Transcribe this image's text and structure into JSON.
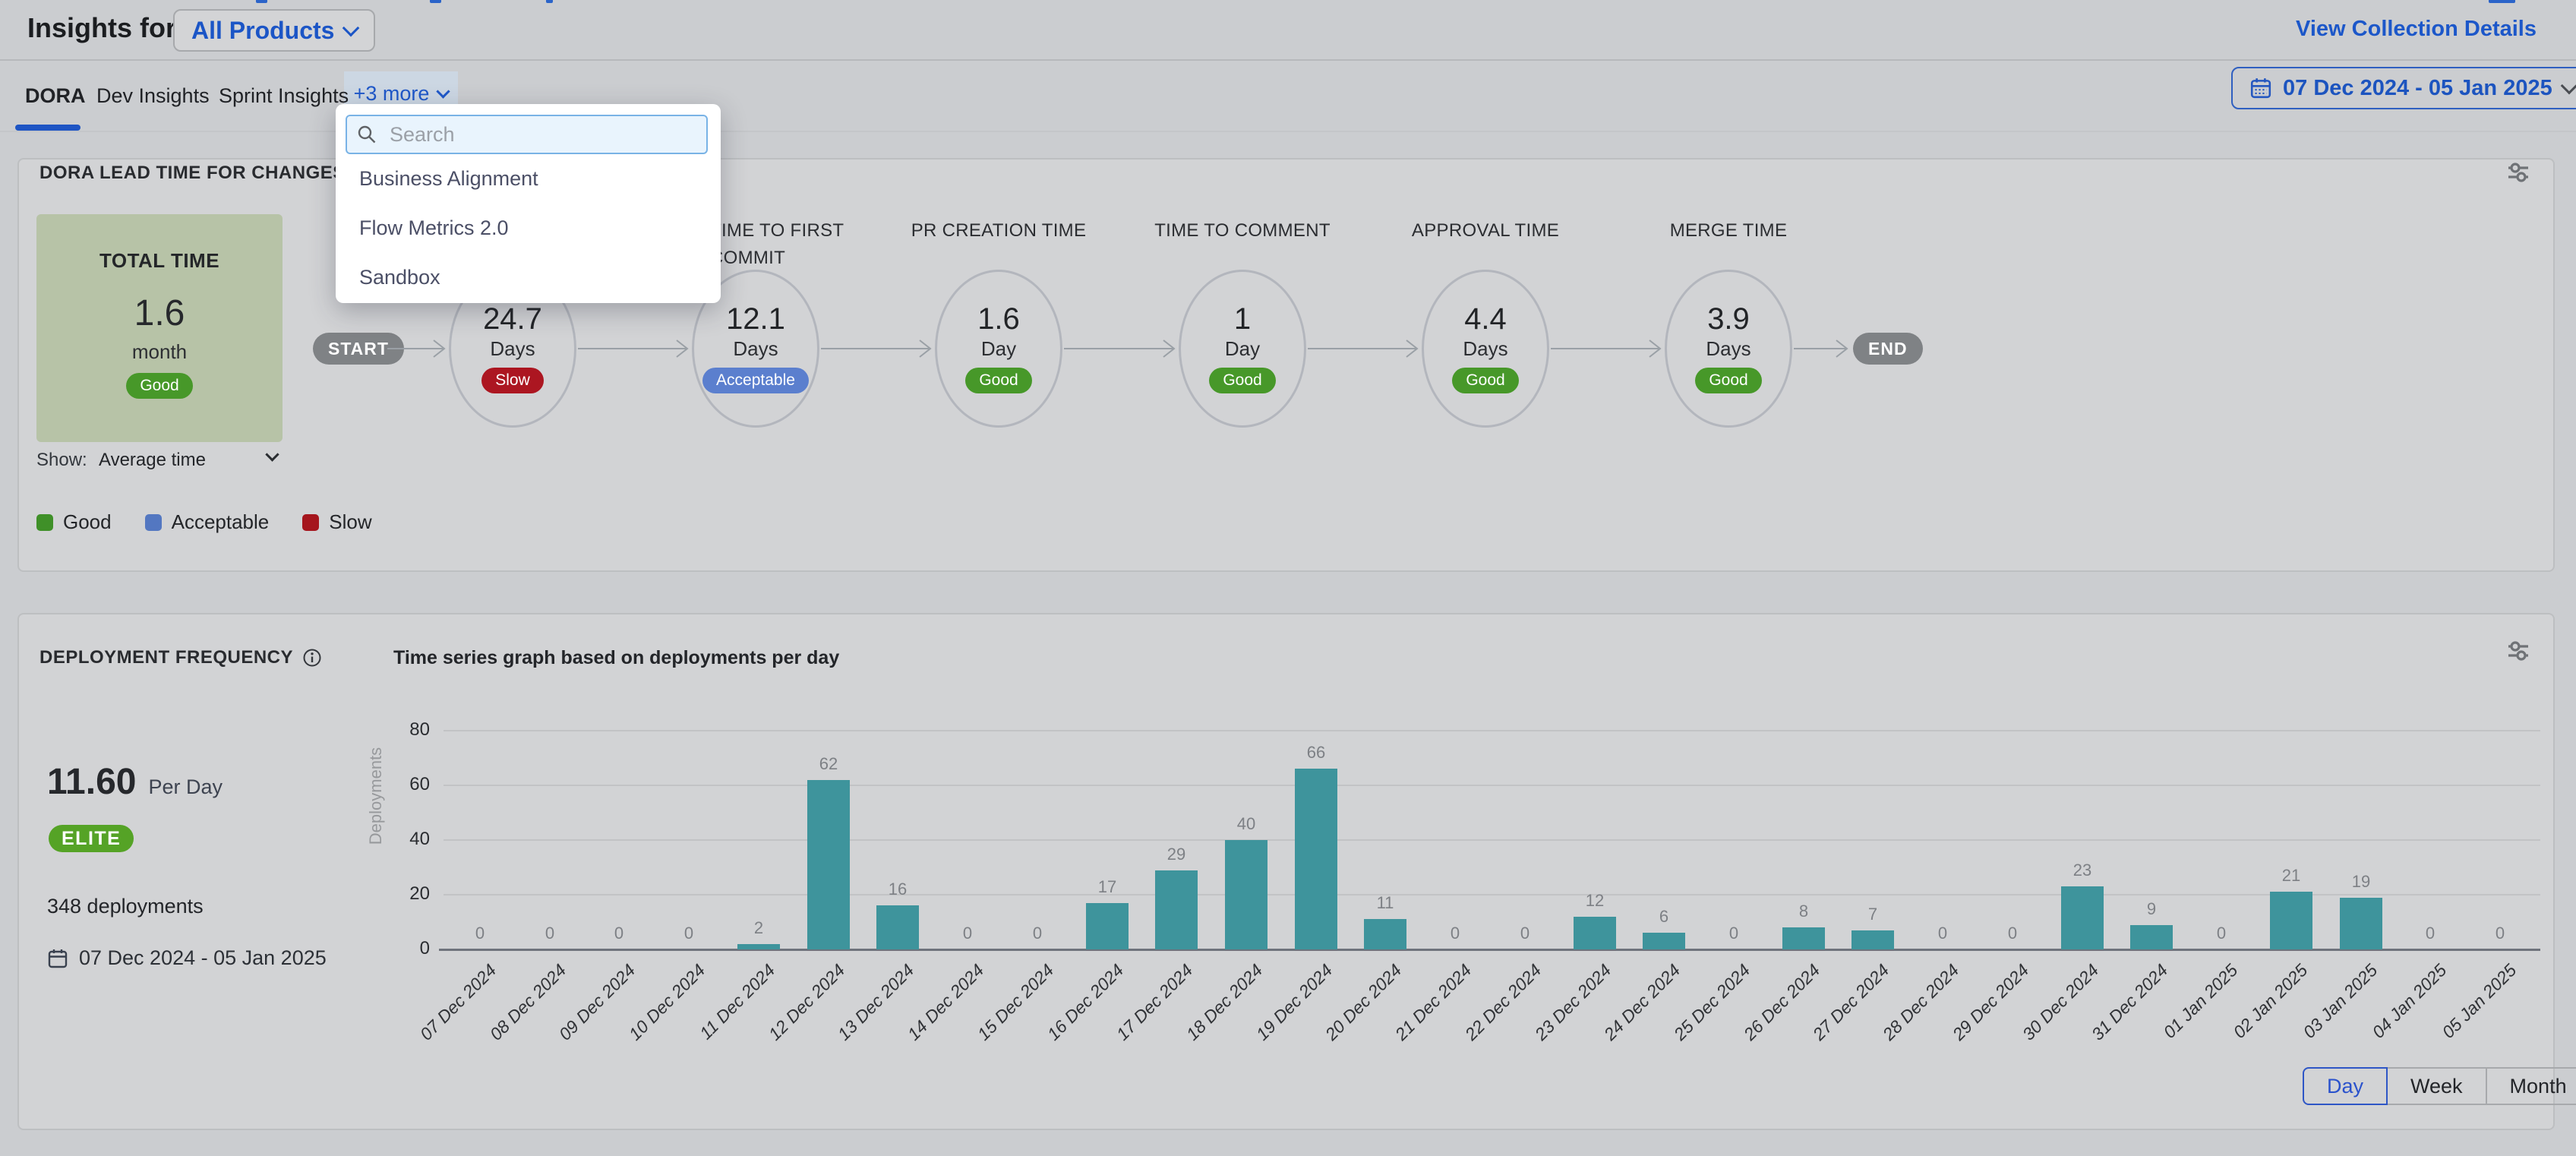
{
  "header": {
    "title": "Insights for",
    "collection_selector": "All Products",
    "view_details": "View Collection Details",
    "date_range": "07 Dec 2024 - 05 Jan 2025"
  },
  "tabs": [
    {
      "label": "DORA",
      "active": true
    },
    {
      "label": "Dev Insights",
      "active": false
    },
    {
      "label": "Sprint Insights",
      "active": false
    }
  ],
  "more": {
    "label": "+3 more"
  },
  "dropdown": {
    "search_placeholder": "Search",
    "items": [
      "Business Alignment",
      "Flow Metrics 2.0",
      "Sandbox"
    ]
  },
  "lead_time_card": {
    "title": "DORA LEAD TIME FOR CHANGES REPORT",
    "total": {
      "label": "TOTAL TIME",
      "value": "1.6",
      "unit": "month",
      "rating": "Good"
    },
    "show_label": "Show:",
    "show_value": "Average time",
    "start_label": "START",
    "end_label": "END",
    "stages": [
      {
        "label": "",
        "value": "24.7",
        "unit": "Days",
        "rating": "Slow"
      },
      {
        "label": "TIME TO FIRST COMMIT",
        "value": "12.1",
        "unit": "Days",
        "rating": "Acceptable"
      },
      {
        "label": "PR CREATION TIME",
        "value": "1.6",
        "unit": "Day",
        "rating": "Good"
      },
      {
        "label": "TIME TO COMMENT",
        "value": "1",
        "unit": "Day",
        "rating": "Good"
      },
      {
        "label": "APPROVAL TIME",
        "value": "4.4",
        "unit": "Days",
        "rating": "Good"
      },
      {
        "label": "MERGE TIME",
        "value": "3.9",
        "unit": "Days",
        "rating": "Good"
      }
    ],
    "legend": [
      {
        "label": "Good",
        "color": "#3f9028"
      },
      {
        "label": "Acceptable",
        "color": "#5377c1"
      },
      {
        "label": "Slow",
        "color": "#a5151d"
      }
    ]
  },
  "deployment_card": {
    "title": "DEPLOYMENT FREQUENCY",
    "subtitle": "Time series graph based on deployments per day",
    "rate_value": "11.60",
    "rate_unit": "Per Day",
    "badge": "ELITE",
    "total_label": "348 deployments",
    "date_range": "07 Dec 2024 - 05 Jan 2025",
    "granularity": [
      "Day",
      "Week",
      "Month"
    ],
    "granularity_active": "Day"
  },
  "chart_data": {
    "type": "bar",
    "title": "Time series graph based on deployments per day",
    "xlabel": "",
    "ylabel": "Deployments",
    "ylim": [
      0,
      80
    ],
    "yticks": [
      0,
      20,
      40,
      60,
      80
    ],
    "grid": true,
    "legend_position": "none",
    "bar_color": "#3e949c",
    "categories": [
      "07 Dec 2024",
      "08 Dec 2024",
      "09 Dec 2024",
      "10 Dec 2024",
      "11 Dec 2024",
      "12 Dec 2024",
      "13 Dec 2024",
      "14 Dec 2024",
      "15 Dec 2024",
      "16 Dec 2024",
      "17 Dec 2024",
      "18 Dec 2024",
      "19 Dec 2024",
      "20 Dec 2024",
      "21 Dec 2024",
      "22 Dec 2024",
      "23 Dec 2024",
      "24 Dec 2024",
      "25 Dec 2024",
      "26 Dec 2024",
      "27 Dec 2024",
      "28 Dec 2024",
      "29 Dec 2024",
      "30 Dec 2024",
      "31 Dec 2024",
      "01 Jan 2025",
      "02 Jan 2025",
      "03 Jan 2025",
      "04 Jan 2025",
      "05 Jan 2025"
    ],
    "values": [
      0,
      0,
      0,
      0,
      2,
      62,
      16,
      0,
      0,
      17,
      29,
      40,
      66,
      11,
      0,
      0,
      12,
      6,
      0,
      8,
      7,
      0,
      0,
      23,
      9,
      0,
      21,
      19,
      0,
      0
    ]
  },
  "colors": {
    "accent_blue": "#1f55c4",
    "teal_bar": "#3e949c",
    "good": "#479829",
    "acceptable": "#5b7fce",
    "slow": "#ac1621",
    "elite": "#55a326",
    "total_box": "#b7c3a7"
  }
}
